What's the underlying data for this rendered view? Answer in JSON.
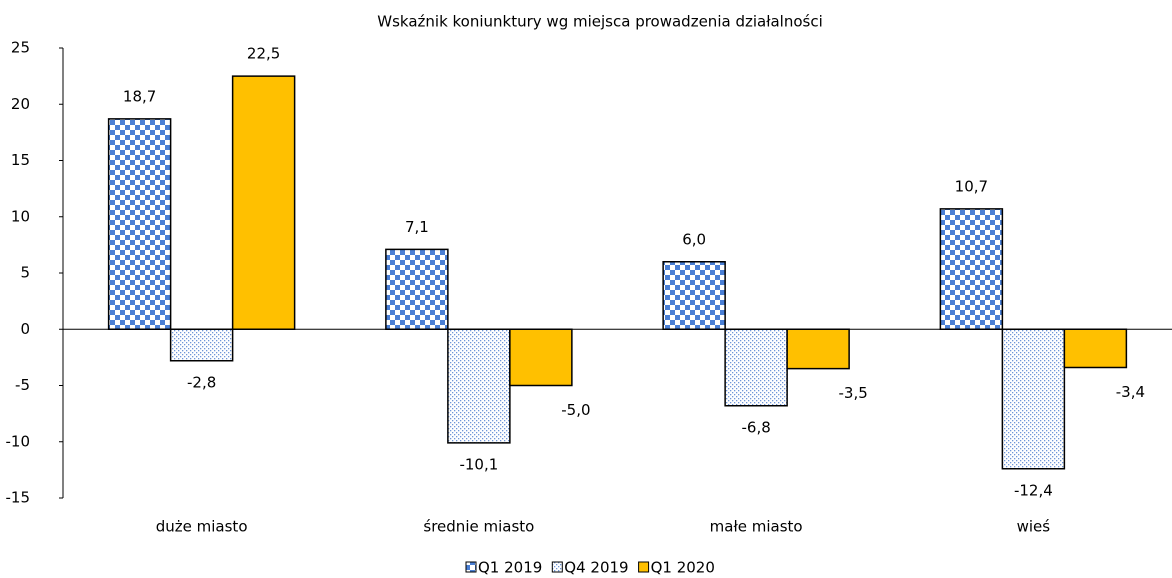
{
  "chart_data": {
    "type": "bar",
    "title": "Wskaźnik koniunktury wg miejsca prowadzenia działalności",
    "categories": [
      "duże miasto",
      "średnie miasto",
      "małe miasto",
      "wieś"
    ],
    "series": [
      {
        "name": "Q1 2019",
        "color": "#4a7fd4",
        "pattern": "checker",
        "values": [
          18.7,
          7.1,
          6.0,
          10.7
        ],
        "value_labels": [
          "18,7",
          "7,1",
          "6,0",
          "10,7"
        ]
      },
      {
        "name": "Q4 2019",
        "color": "#6f96d8",
        "pattern": "dots",
        "values": [
          -2.8,
          -10.1,
          -6.8,
          -12.4
        ],
        "value_labels": [
          "-2,8",
          "-10,1",
          "-6,8",
          "-12,4"
        ]
      },
      {
        "name": "Q1 2020",
        "color": "#ffc000",
        "pattern": "solid",
        "values": [
          22.5,
          -5.0,
          -3.5,
          -3.4
        ],
        "value_labels": [
          "22,5",
          "-5,0",
          "-3,5",
          "-3,4"
        ]
      }
    ],
    "ylim": [
      -15,
      25
    ],
    "yticks": [
      -15,
      -10,
      -5,
      0,
      5,
      10,
      15,
      20,
      25
    ],
    "grid": false,
    "legend": "bottom"
  }
}
